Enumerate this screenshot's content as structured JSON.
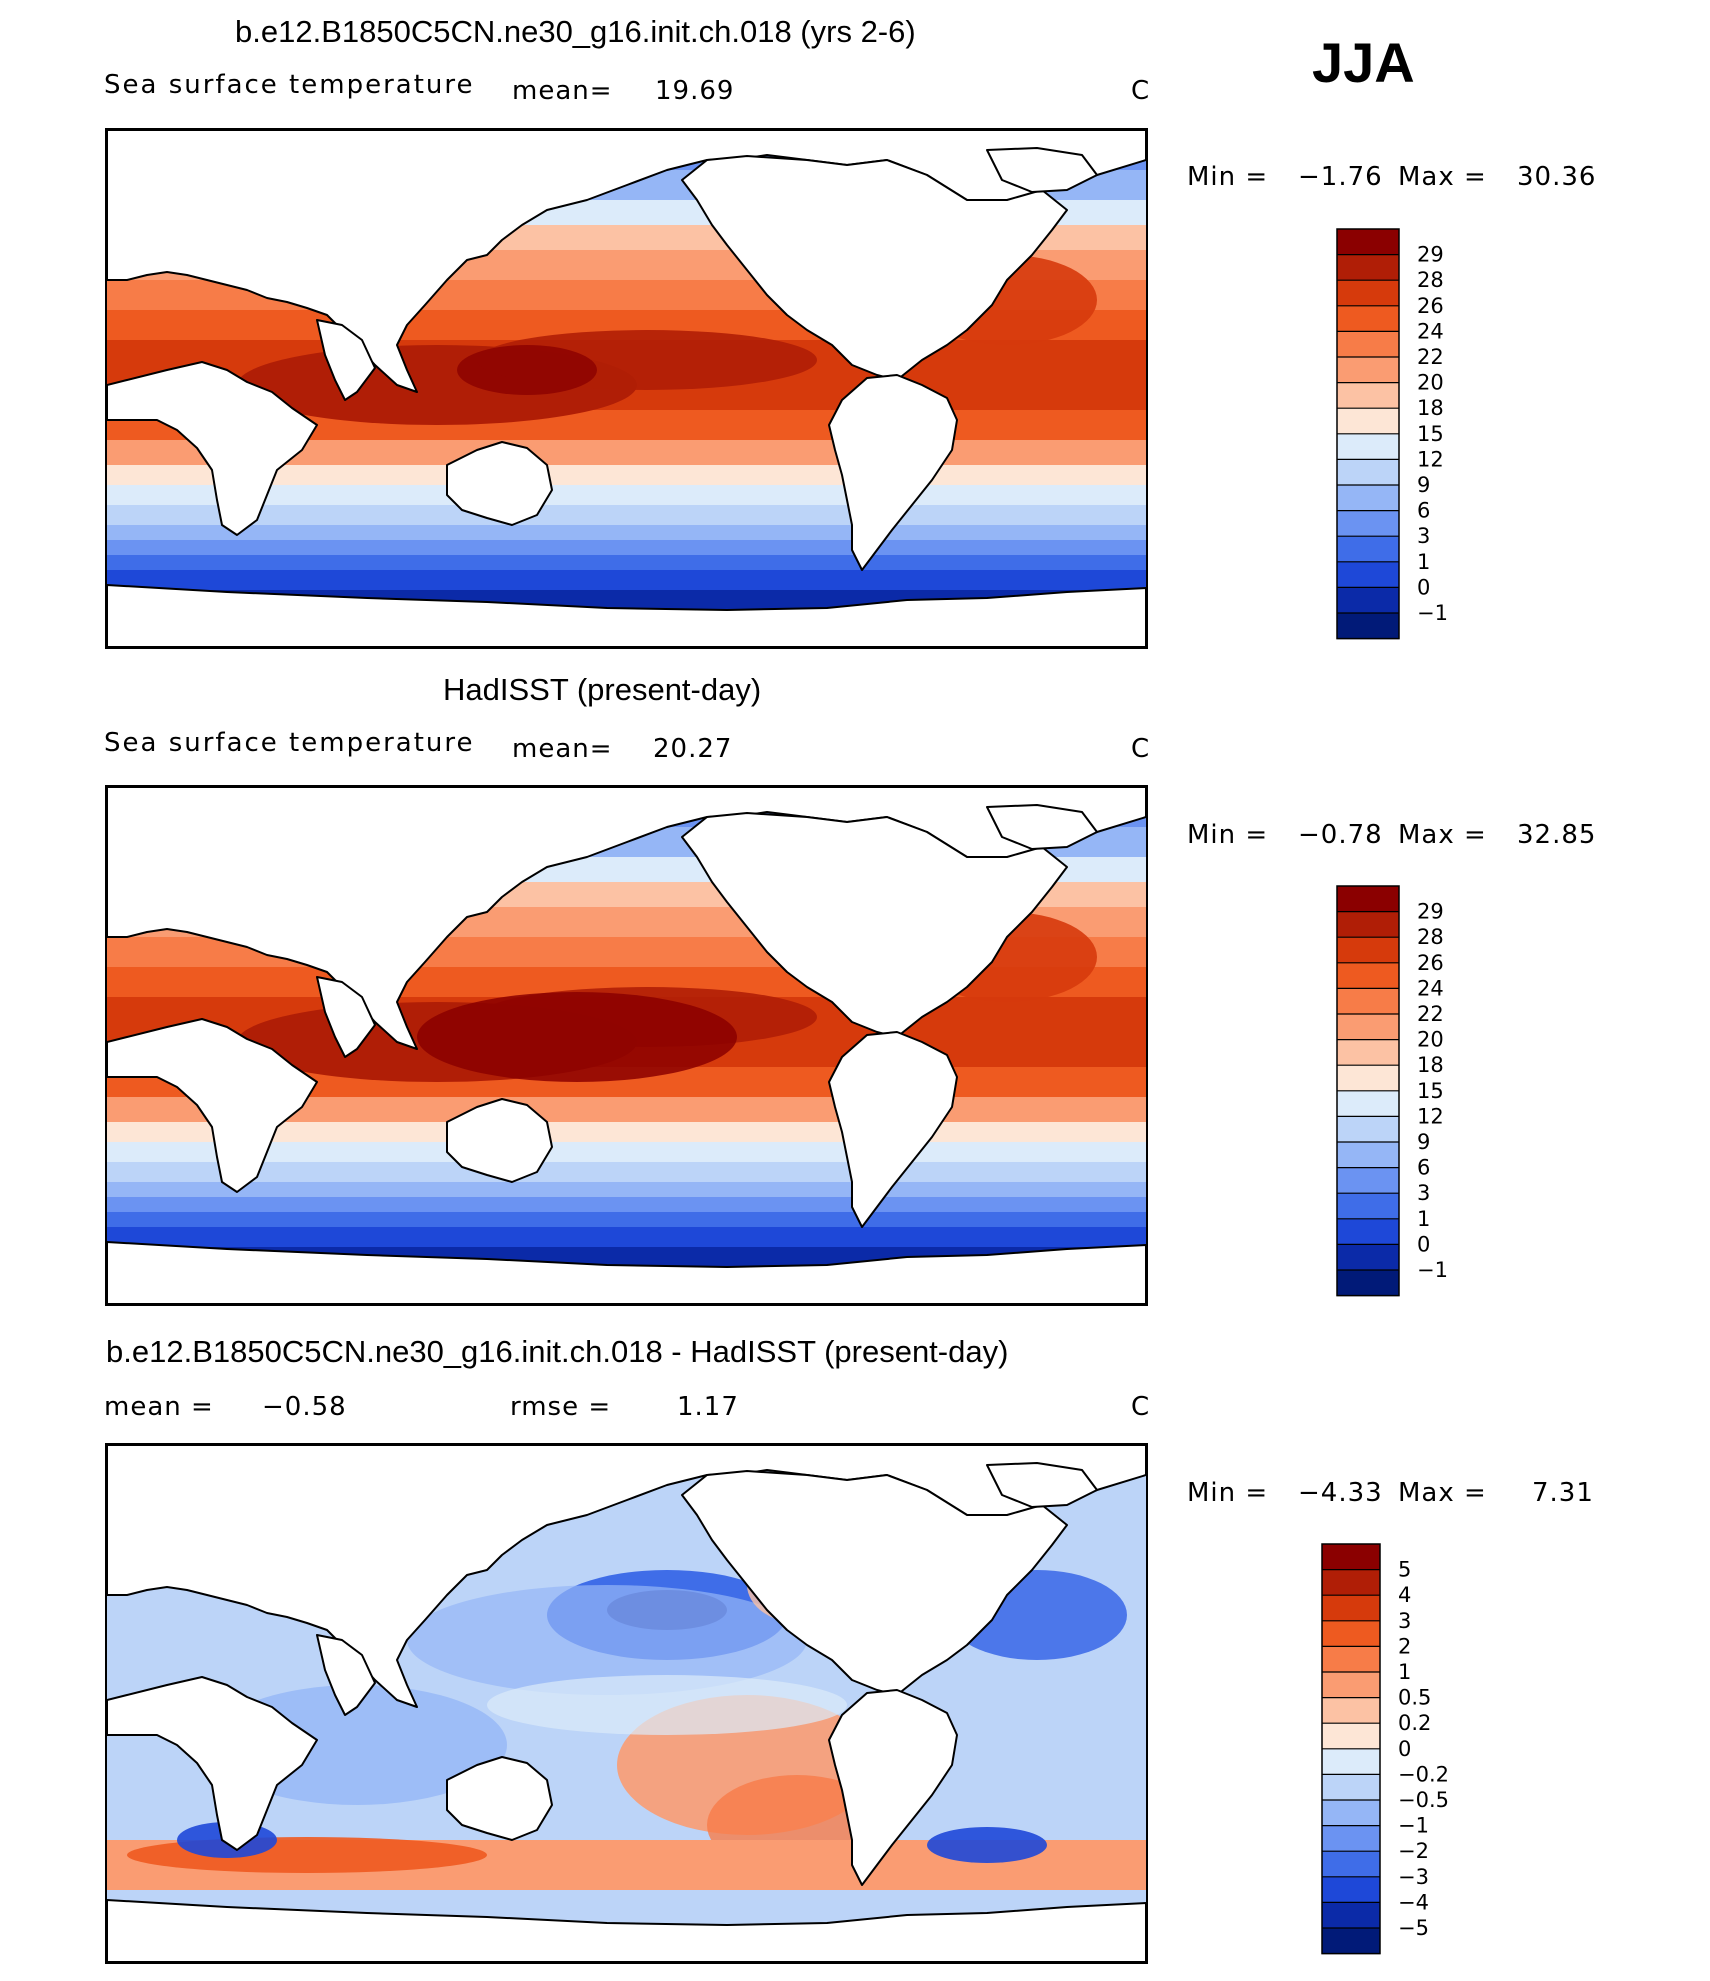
{
  "season": "JJA",
  "units": "C",
  "panel1": {
    "title": "b.e12.B1850C5CN.ne30_g16.init.ch.018 (yrs 2-6)",
    "subtitle": "Sea surface temperature",
    "mean_label": "mean=",
    "mean_value": "19.69",
    "min_label": "Min =",
    "min_value": "−1.76",
    "max_label": "Max =",
    "max_value": "30.36"
  },
  "panel2": {
    "title": "HadISST (present-day)",
    "subtitle": "Sea surface temperature",
    "mean_label": "mean=",
    "mean_value": "20.27",
    "min_label": "Min =",
    "min_value": "−0.78",
    "max_label": "Max =",
    "max_value": "32.85"
  },
  "panel3": {
    "title": "b.e12.B1850C5CN.ne30_g16.init.ch.018 - HadISST (present-day)",
    "mean_label": "mean =",
    "mean_value": "−0.58",
    "rmse_label": "rmse =",
    "rmse_value": "1.17",
    "min_label": "Min =",
    "min_value": "−4.33",
    "max_label": "Max =",
    "max_value": "7.31"
  },
  "chart_data": [
    {
      "type": "heatmap",
      "title": "b.e12.B1850C5CN.ne30_g16.init.ch.018 (yrs 2-6)",
      "subtitle": "Sea surface temperature",
      "units": "C",
      "mean": 19.69,
      "min": -1.76,
      "max": 30.36,
      "colorbar_levels": [
        "29",
        "28",
        "26",
        "24",
        "22",
        "20",
        "18",
        "15",
        "12",
        "9",
        "6",
        "3",
        "1",
        "0",
        "−1"
      ],
      "colorbar_colors": [
        "#8b0000",
        "#b01e06",
        "#d63a0c",
        "#ee5a20",
        "#f77c48",
        "#fa9c72",
        "#fcc2a4",
        "#fde6d6",
        "#dcebfa",
        "#bcd4f8",
        "#95b6f6",
        "#6b93f2",
        "#3f6de8",
        "#1e48d8",
        "#0b2aa8",
        "#011a78"
      ],
      "description_note": "Global map, Pacific-centered"
    },
    {
      "type": "heatmap",
      "title": "HadISST (present-day)",
      "subtitle": "Sea surface temperature",
      "units": "C",
      "mean": 20.27,
      "min": -0.78,
      "max": 32.85,
      "colorbar_levels": [
        "29",
        "28",
        "26",
        "24",
        "22",
        "20",
        "18",
        "15",
        "12",
        "9",
        "6",
        "3",
        "1",
        "0",
        "−1"
      ],
      "colorbar_colors": [
        "#8b0000",
        "#b01e06",
        "#d63a0c",
        "#ee5a20",
        "#f77c48",
        "#fa9c72",
        "#fcc2a4",
        "#fde6d6",
        "#dcebfa",
        "#bcd4f8",
        "#95b6f6",
        "#6b93f2",
        "#3f6de8",
        "#1e48d8",
        "#0b2aa8",
        "#011a78"
      ]
    },
    {
      "type": "heatmap",
      "title": "b.e12.B1850C5CN.ne30_g16.init.ch.018 - HadISST (present-day)",
      "units": "C",
      "mean": -0.58,
      "rmse": 1.17,
      "min": -4.33,
      "max": 7.31,
      "colorbar_levels": [
        "5",
        "4",
        "3",
        "2",
        "1",
        "0.5",
        "0.2",
        "0",
        "−0.2",
        "−0.5",
        "−1",
        "−2",
        "−3",
        "−4",
        "−5"
      ],
      "colorbar_colors": [
        "#8b0000",
        "#b01e06",
        "#d63a0c",
        "#ee5a20",
        "#f77c48",
        "#fa9c72",
        "#fcc2a4",
        "#fde6d6",
        "#dcebfa",
        "#bcd4f8",
        "#95b6f6",
        "#6b93f2",
        "#3f6de8",
        "#1e48d8",
        "#0b2aa8",
        "#011a78"
      ]
    }
  ]
}
